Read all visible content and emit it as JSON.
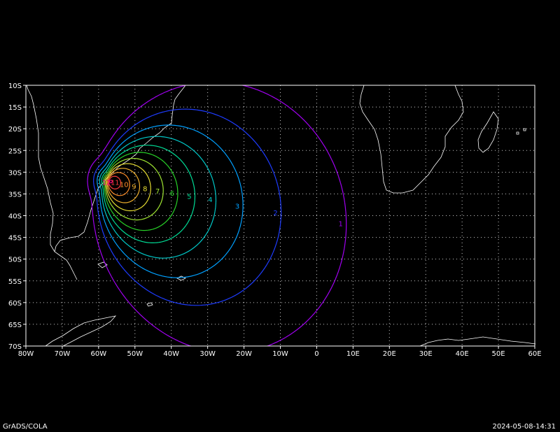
{
  "map": {
    "lon_range": [
      -80,
      60
    ],
    "lat_range": [
      -70,
      -10
    ],
    "x_ticks": [
      "80W",
      "70W",
      "60W",
      "50W",
      "40W",
      "30W",
      "20W",
      "10W",
      "0",
      "10E",
      "20E",
      "30E",
      "40E",
      "50E",
      "60E"
    ],
    "y_ticks": [
      "10S",
      "15S",
      "20S",
      "25S",
      "30S",
      "35S",
      "40S",
      "45S",
      "50S",
      "55S",
      "60S",
      "65S",
      "70S"
    ],
    "grid": "dotted",
    "contour_levels": [
      {
        "level": 1,
        "label": "1",
        "color": "#a000f0"
      },
      {
        "level": 2,
        "label": "2",
        "color": "#1e3cff"
      },
      {
        "level": 3,
        "label": "3",
        "color": "#00a0ff"
      },
      {
        "level": 4,
        "label": "4",
        "color": "#00c8c8"
      },
      {
        "level": 5,
        "label": "5",
        "color": "#00dc96"
      },
      {
        "level": 6,
        "label": "6",
        "color": "#28d228"
      },
      {
        "level": 7,
        "label": "7",
        "color": "#a0e632"
      },
      {
        "level": 8,
        "label": "8",
        "color": "#e6dc32"
      },
      {
        "level": 9,
        "label": "9",
        "color": "#f0af2d"
      },
      {
        "level": 10,
        "label": "10",
        "color": "#fa8c28"
      },
      {
        "level": 11,
        "label": "11",
        "color": "#fa3c3c"
      },
      {
        "level": 12,
        "label": "12",
        "color": "#f00082"
      }
    ]
  },
  "footer": {
    "left": "GrADS/COLA",
    "right": "2024-05-08-14:31"
  }
}
